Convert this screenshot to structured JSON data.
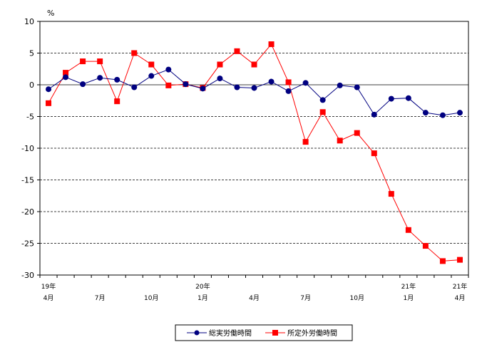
{
  "chart_data": {
    "type": "line",
    "title": "",
    "ylabel": "%",
    "xlabel": "",
    "ylim": [
      -30,
      10
    ],
    "yticks": [
      10,
      5,
      0,
      -5,
      -10,
      -15,
      -20,
      -25,
      -30
    ],
    "grid": "horizontal dashed",
    "legend": "bottom-center",
    "x_tick_labels": [
      {
        "index": 0,
        "lines": [
          "19年",
          "4月"
        ]
      },
      {
        "index": 3,
        "lines": [
          "7月"
        ]
      },
      {
        "index": 6,
        "lines": [
          "10月"
        ]
      },
      {
        "index": 9,
        "lines": [
          "20年",
          "1月"
        ]
      },
      {
        "index": 12,
        "lines": [
          "4月"
        ]
      },
      {
        "index": 15,
        "lines": [
          "7月"
        ]
      },
      {
        "index": 18,
        "lines": [
          "10月"
        ]
      },
      {
        "index": 21,
        "lines": [
          "21年",
          "1月"
        ]
      },
      {
        "index": 24,
        "lines": [
          "21年",
          "4月"
        ]
      }
    ],
    "series": [
      {
        "name": "総実労働時間",
        "color": "#000080",
        "marker": "circle",
        "values": [
          -0.7,
          1.2,
          0.1,
          1.1,
          0.8,
          -0.4,
          1.4,
          2.4,
          0.1,
          -0.6,
          1.0,
          -0.4,
          -0.5,
          0.5,
          -1.0,
          0.3,
          -2.4,
          -0.1,
          -0.4,
          -4.7,
          -2.2,
          -2.1,
          -4.4,
          -4.8,
          -4.4
        ]
      },
      {
        "name": "所定外労働時間",
        "color": "#ff0000",
        "marker": "square",
        "values": [
          -2.9,
          1.9,
          3.7,
          3.7,
          -2.6,
          5.0,
          3.2,
          -0.1,
          0.1,
          -0.5,
          3.2,
          5.3,
          3.2,
          6.4,
          0.4,
          -9.0,
          -4.3,
          -8.8,
          -7.6,
          -10.8,
          -17.2,
          -22.9,
          -25.4,
          -27.8,
          -27.6
        ]
      }
    ]
  }
}
